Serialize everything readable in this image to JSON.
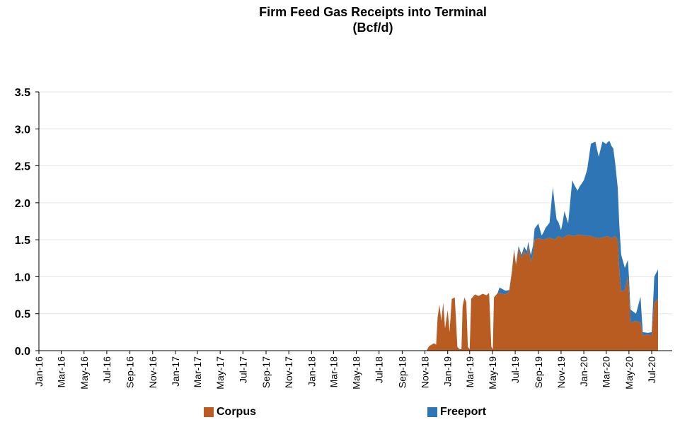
{
  "chart_data": {
    "type": "area",
    "title": "Firm Feed Gas Receipts into Terminal",
    "subtitle": "(Bcf/d)",
    "xlabel": "",
    "ylabel": "",
    "ylim": [
      0,
      3.5
    ],
    "yticks": [
      "0.0",
      "0.5",
      "1.0",
      "1.5",
      "2.0",
      "2.5",
      "3.0",
      "3.5"
    ],
    "x_tick_labels": [
      "Jan-16",
      "Mar-16",
      "May-16",
      "Jul-16",
      "Sep-16",
      "Nov-16",
      "Jan-17",
      "Mar-17",
      "May-17",
      "Jul-17",
      "Sep-17",
      "Nov-17",
      "Jan-18",
      "Mar-18",
      "May-18",
      "Jul-18",
      "Sep-18",
      "Nov-18",
      "Jan-19",
      "Mar-19",
      "May-19",
      "Jul-19",
      "Sep-19",
      "Nov-19",
      "Jan-20",
      "Mar-20",
      "May-20",
      "Jul-20"
    ],
    "stacked": true,
    "grid": true,
    "legend": "bottom",
    "series": [
      {
        "name": "Corpus",
        "color": "#b85c22",
        "points": [
          [
            "2016-01-01",
            0
          ],
          [
            "2018-11-05",
            0
          ],
          [
            "2018-11-12",
            0.06
          ],
          [
            "2018-11-25",
            0.1
          ],
          [
            "2018-12-01",
            0.08
          ],
          [
            "2018-12-05",
            0.45
          ],
          [
            "2018-12-10",
            0.62
          ],
          [
            "2018-12-15",
            0.4
          ],
          [
            "2018-12-20",
            0.65
          ],
          [
            "2018-12-25",
            0.3
          ],
          [
            "2019-01-01",
            0.55
          ],
          [
            "2019-01-06",
            0.25
          ],
          [
            "2019-01-12",
            0.7
          ],
          [
            "2019-01-20",
            0.72
          ],
          [
            "2019-01-27",
            0.05
          ],
          [
            "2019-02-02",
            0.02
          ],
          [
            "2019-02-07",
            0.02
          ],
          [
            "2019-02-10",
            0.6
          ],
          [
            "2019-02-15",
            0.72
          ],
          [
            "2019-02-20",
            0.65
          ],
          [
            "2019-02-24",
            0.05
          ],
          [
            "2019-03-01",
            0.02
          ],
          [
            "2019-03-05",
            0.7
          ],
          [
            "2019-03-15",
            0.76
          ],
          [
            "2019-03-25",
            0.74
          ],
          [
            "2019-04-05",
            0.77
          ],
          [
            "2019-04-15",
            0.75
          ],
          [
            "2019-04-22",
            0.78
          ],
          [
            "2019-04-28",
            0.05
          ],
          [
            "2019-05-02",
            0.02
          ],
          [
            "2019-05-05",
            0.72
          ],
          [
            "2019-05-15",
            0.78
          ],
          [
            "2019-05-25",
            0.77
          ],
          [
            "2019-06-05",
            0.76
          ],
          [
            "2019-06-15",
            0.8
          ],
          [
            "2019-06-22",
            1.05
          ],
          [
            "2019-06-28",
            1.35
          ],
          [
            "2019-07-03",
            1.15
          ],
          [
            "2019-07-10",
            1.38
          ],
          [
            "2019-07-18",
            1.25
          ],
          [
            "2019-07-25",
            1.35
          ],
          [
            "2019-08-01",
            1.28
          ],
          [
            "2019-08-05",
            1.4
          ],
          [
            "2019-08-12",
            1.2
          ],
          [
            "2019-08-18",
            1.3
          ],
          [
            "2019-08-22",
            1.5
          ],
          [
            "2019-09-01",
            1.52
          ],
          [
            "2019-09-15",
            1.5
          ],
          [
            "2019-10-01",
            1.53
          ],
          [
            "2019-10-15",
            1.5
          ],
          [
            "2019-10-25",
            1.55
          ],
          [
            "2019-11-05",
            1.52
          ],
          [
            "2019-11-20",
            1.57
          ],
          [
            "2019-12-05",
            1.55
          ],
          [
            "2019-12-20",
            1.57
          ],
          [
            "2020-01-05",
            1.55
          ],
          [
            "2020-01-20",
            1.55
          ],
          [
            "2020-02-05",
            1.52
          ],
          [
            "2020-02-20",
            1.53
          ],
          [
            "2020-03-05",
            1.55
          ],
          [
            "2020-03-15",
            1.52
          ],
          [
            "2020-03-25",
            1.55
          ],
          [
            "2020-04-01",
            1.5
          ],
          [
            "2020-04-05",
            1.1
          ],
          [
            "2020-04-10",
            0.8
          ],
          [
            "2020-04-20",
            0.82
          ],
          [
            "2020-04-28",
            1.0
          ],
          [
            "2020-05-01",
            0.8
          ],
          [
            "2020-05-05",
            0.38
          ],
          [
            "2020-05-20",
            0.4
          ],
          [
            "2020-06-01",
            0.38
          ],
          [
            "2020-06-07",
            0.2
          ],
          [
            "2020-06-20",
            0.22
          ],
          [
            "2020-07-01",
            0.2
          ],
          [
            "2020-07-08",
            0.65
          ],
          [
            "2020-07-18",
            0.7
          ]
        ]
      },
      {
        "name": "Freeport",
        "color": "#2e75b6",
        "points": [
          [
            "2016-01-01",
            0
          ],
          [
            "2019-05-15",
            0
          ],
          [
            "2019-05-20",
            0.08
          ],
          [
            "2019-06-05",
            0.05
          ],
          [
            "2019-06-15",
            0.02
          ],
          [
            "2019-07-01",
            0.02
          ],
          [
            "2019-07-20",
            0.05
          ],
          [
            "2019-08-10",
            0.08
          ],
          [
            "2019-08-22",
            0.15
          ],
          [
            "2019-09-01",
            0.2
          ],
          [
            "2019-09-10",
            0.05
          ],
          [
            "2019-09-20",
            0.15
          ],
          [
            "2019-10-01",
            0.2
          ],
          [
            "2019-10-10",
            0.7
          ],
          [
            "2019-10-20",
            0.25
          ],
          [
            "2019-11-01",
            0.1
          ],
          [
            "2019-11-10",
            0.35
          ],
          [
            "2019-11-20",
            0.15
          ],
          [
            "2019-12-01",
            0.75
          ],
          [
            "2019-12-15",
            0.6
          ],
          [
            "2020-01-01",
            0.75
          ],
          [
            "2020-01-10",
            0.9
          ],
          [
            "2020-01-20",
            1.25
          ],
          [
            "2020-02-01",
            1.3
          ],
          [
            "2020-02-10",
            1.1
          ],
          [
            "2020-02-20",
            1.3
          ],
          [
            "2020-03-01",
            1.25
          ],
          [
            "2020-03-10",
            1.3
          ],
          [
            "2020-03-20",
            1.2
          ],
          [
            "2020-04-01",
            0.7
          ],
          [
            "2020-04-10",
            0.5
          ],
          [
            "2020-04-20",
            0.3
          ],
          [
            "2020-05-01",
            0.2
          ],
          [
            "2020-05-10",
            0.15
          ],
          [
            "2020-05-20",
            0.1
          ],
          [
            "2020-06-01",
            0.35
          ],
          [
            "2020-06-07",
            0.05
          ],
          [
            "2020-06-20",
            0.02
          ],
          [
            "2020-07-01",
            0.05
          ],
          [
            "2020-07-08",
            0.35
          ],
          [
            "2020-07-18",
            0.4
          ]
        ]
      }
    ]
  }
}
